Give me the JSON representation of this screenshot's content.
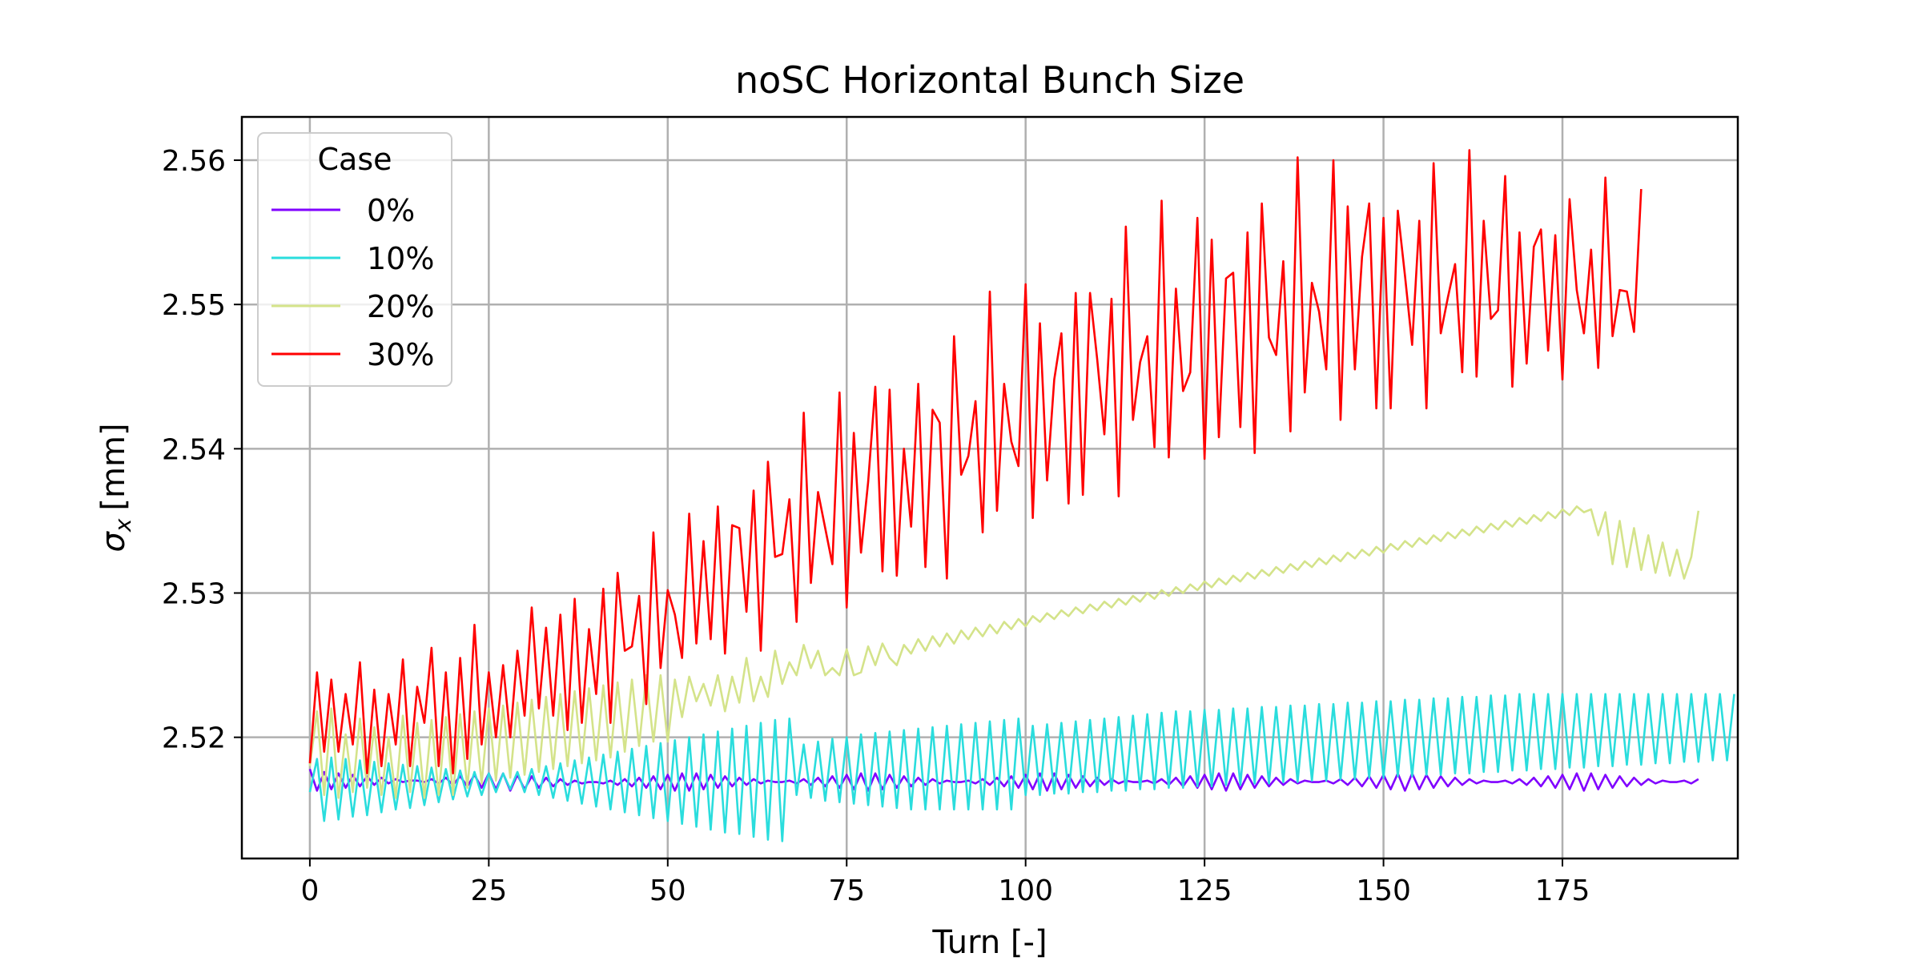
{
  "chart_data": {
    "type": "line",
    "title": "noSC Horizontal Bunch Size",
    "xlabel": "Turn [-]",
    "ylabel_symbol": "σ",
    "ylabel_subscript": "x",
    "ylabel_unit": "[mm]",
    "xlim": [
      -9.5,
      199.5
    ],
    "ylim": [
      2.5116,
      2.563
    ],
    "x_ticks": [
      0,
      25,
      50,
      75,
      100,
      125,
      150,
      175
    ],
    "y_ticks": [
      2.52,
      2.53,
      2.54,
      2.55,
      2.56
    ],
    "y_tick_labels": [
      "2.52",
      "2.53",
      "2.54",
      "2.55",
      "2.56"
    ],
    "grid": true,
    "legend": {
      "title": "Case",
      "placement": "top-left"
    },
    "x": {
      "start": 0,
      "end": 190,
      "step": 1
    },
    "series": [
      {
        "name": "0%",
        "color": "#8000ff",
        "values": [
          2.5178,
          2.5163,
          2.5176,
          2.5164,
          2.5175,
          2.5165,
          2.5174,
          2.5166,
          2.5173,
          2.5167,
          2.5172,
          2.5168,
          2.5171,
          2.5169,
          2.517,
          2.517,
          2.5169,
          2.5171,
          2.5168,
          2.5172,
          2.5167,
          2.5173,
          2.5166,
          2.5174,
          2.5165,
          2.5175,
          2.5164,
          2.5175,
          2.5163,
          2.5174,
          2.5164,
          2.5173,
          2.5165,
          2.5172,
          2.5166,
          2.5171,
          2.5167,
          2.517,
          2.5168,
          2.5169,
          2.5169,
          2.5168,
          2.517,
          2.5167,
          2.5171,
          2.5166,
          2.5172,
          2.5165,
          2.5173,
          2.5164,
          2.5174,
          2.5163,
          2.5175,
          2.5163,
          2.5175,
          2.5164,
          2.5174,
          2.5165,
          2.5173,
          2.5166,
          2.5172,
          2.5167,
          2.5171,
          2.5168,
          2.517,
          2.5169,
          2.5169,
          2.517,
          2.5168,
          2.5171,
          2.5167,
          2.5172,
          2.5166,
          2.5173,
          2.5165,
          2.5174,
          2.5164,
          2.5175,
          2.5163,
          2.5175,
          2.5164,
          2.5174,
          2.5165,
          2.5173,
          2.5166,
          2.5172,
          2.5167,
          2.5171,
          2.5168,
          2.517,
          2.5169,
          2.5169,
          2.517,
          2.5168,
          2.5171,
          2.5167,
          2.5172,
          2.5166,
          2.5173,
          2.5165,
          2.5174,
          2.5164,
          2.5175,
          2.5163,
          2.5175,
          2.5164,
          2.5174,
          2.5165,
          2.5173,
          2.5166,
          2.5172,
          2.5167,
          2.5171,
          2.5168,
          2.517,
          2.5169,
          2.5169,
          2.517,
          2.5168,
          2.5171,
          2.5167,
          2.5172,
          2.5166,
          2.5173,
          2.5165,
          2.5174,
          2.5164,
          2.5175,
          2.5163,
          2.5175,
          2.5164,
          2.5174,
          2.5165,
          2.5173,
          2.5166,
          2.5172,
          2.5167,
          2.5171,
          2.5168,
          2.517,
          2.5169,
          2.5169,
          2.517,
          2.5168,
          2.5171,
          2.5167,
          2.5172,
          2.5166,
          2.5173,
          2.5165,
          2.5174,
          2.5164,
          2.5175,
          2.5163,
          2.5175,
          2.5164,
          2.5174,
          2.5165,
          2.5173,
          2.5166,
          2.5172,
          2.5167,
          2.5171,
          2.5168,
          2.517,
          2.5169,
          2.5169,
          2.517,
          2.5168,
          2.5171,
          2.5167,
          2.5172,
          2.5166,
          2.5173,
          2.5165,
          2.5174,
          2.5164,
          2.5175,
          2.5163,
          2.5175,
          2.5164,
          2.5174,
          2.5165,
          2.5173,
          2.5166,
          2.5172,
          2.5167,
          2.5171,
          2.5168,
          2.517,
          2.5169,
          2.5169,
          2.517,
          2.5168,
          2.5171
        ]
      },
      {
        "name": "10%",
        "color": "#2adddd",
        "values": [
          2.5162,
          2.5185,
          2.5142,
          2.5186,
          2.5143,
          2.5185,
          2.5145,
          2.5184,
          2.5146,
          2.5183,
          2.5148,
          2.5182,
          2.515,
          2.5181,
          2.5151,
          2.518,
          2.5153,
          2.5179,
          2.5155,
          2.5178,
          2.5157,
          2.5177,
          2.5159,
          2.5176,
          2.516,
          2.5175,
          2.5162,
          2.5175,
          2.5164,
          2.5176,
          2.5162,
          2.5178,
          2.516,
          2.518,
          2.5158,
          2.5182,
          2.5156,
          2.5184,
          2.5154,
          2.5186,
          2.5152,
          2.5188,
          2.515,
          2.519,
          2.5148,
          2.5192,
          2.5146,
          2.5194,
          2.5144,
          2.5196,
          2.5142,
          2.5198,
          2.514,
          2.52,
          2.5138,
          2.5202,
          2.5136,
          2.5204,
          2.5134,
          2.5206,
          2.5133,
          2.5208,
          2.5131,
          2.521,
          2.5129,
          2.5212,
          2.5128,
          2.5213,
          2.516,
          2.5195,
          2.5158,
          2.5197,
          2.5156,
          2.5199,
          2.5155,
          2.52,
          2.5154,
          2.5202,
          2.5153,
          2.5203,
          2.5152,
          2.5204,
          2.5151,
          2.5205,
          2.515,
          2.5206,
          2.515,
          2.5207,
          2.515,
          2.5208,
          2.515,
          2.5209,
          2.515,
          2.521,
          2.515,
          2.5211,
          2.515,
          2.5212,
          2.515,
          2.5213,
          2.516,
          2.5208,
          2.516,
          2.5209,
          2.5161,
          2.521,
          2.5161,
          2.5211,
          2.5162,
          2.5212,
          2.5162,
          2.5213,
          2.5163,
          2.5214,
          2.5163,
          2.5215,
          2.5164,
          2.5216,
          2.5164,
          2.5217,
          2.5165,
          2.5218,
          2.5165,
          2.5218,
          2.5166,
          2.5219,
          2.5166,
          2.5219,
          2.5167,
          2.522,
          2.5167,
          2.522,
          2.5168,
          2.5221,
          2.5168,
          2.5221,
          2.5169,
          2.5222,
          2.5169,
          2.5222,
          2.517,
          2.5223,
          2.517,
          2.5223,
          2.5171,
          2.5224,
          2.5171,
          2.5224,
          2.5172,
          2.5225,
          2.5172,
          2.5225,
          2.5173,
          2.5226,
          2.5173,
          2.5226,
          2.5174,
          2.5227,
          2.5174,
          2.5227,
          2.5175,
          2.5228,
          2.5175,
          2.5228,
          2.5176,
          2.5229,
          2.5176,
          2.5229,
          2.5177,
          2.523,
          2.5177,
          2.523,
          2.5178,
          2.523,
          2.5178,
          2.523,
          2.5179,
          2.523,
          2.5179,
          2.523,
          2.518,
          2.523,
          2.518,
          2.523,
          2.5181,
          2.523,
          2.5181,
          2.523,
          2.5182,
          2.523,
          2.5182,
          2.523,
          2.5183,
          2.523,
          2.5183,
          2.523,
          2.5184,
          2.523,
          2.5184,
          2.523
        ]
      },
      {
        "name": "20%",
        "color": "#d4e38a",
        "values": [
          2.518,
          2.5218,
          2.516,
          2.522,
          2.5158,
          2.5202,
          2.5162,
          2.5213,
          2.5165,
          2.5207,
          2.516,
          2.52,
          2.5158,
          2.5215,
          2.5162,
          2.521,
          2.5158,
          2.5212,
          2.516,
          2.5214,
          2.516,
          2.5216,
          2.5165,
          2.5218,
          2.5168,
          2.522,
          2.517,
          2.5222,
          2.5172,
          2.5224,
          2.5174,
          2.5226,
          2.5176,
          2.5228,
          2.5178,
          2.523,
          2.518,
          2.5232,
          2.5182,
          2.5234,
          2.5184,
          2.5236,
          2.5186,
          2.5238,
          2.519,
          2.524,
          2.5194,
          2.5243,
          2.5197,
          2.5243,
          2.5197,
          2.524,
          2.5214,
          2.5242,
          2.5225,
          2.5237,
          2.5222,
          2.5243,
          2.5218,
          2.5242,
          2.5224,
          2.5255,
          2.5225,
          2.5242,
          2.5228,
          2.526,
          2.5237,
          2.5252,
          2.5243,
          2.5264,
          2.5248,
          2.526,
          2.5243,
          2.5248,
          2.5243,
          2.5261,
          2.5243,
          2.5245,
          2.5263,
          2.525,
          2.5265,
          2.5255,
          2.525,
          2.5264,
          2.5258,
          2.5268,
          2.526,
          2.527,
          2.5263,
          2.5272,
          2.5265,
          2.5274,
          2.5268,
          2.5276,
          2.527,
          2.5278,
          2.5272,
          2.528,
          2.5275,
          2.5282,
          2.5277,
          2.5284,
          2.528,
          2.5286,
          2.5282,
          2.5288,
          2.5284,
          2.529,
          2.5286,
          2.5292,
          2.5288,
          2.5294,
          2.529,
          2.5296,
          2.5292,
          2.5298,
          2.5294,
          2.53,
          2.5296,
          2.5302,
          2.5298,
          2.5304,
          2.53,
          2.5306,
          2.5302,
          2.5308,
          2.5304,
          2.531,
          2.5306,
          2.5312,
          2.5308,
          2.5314,
          2.531,
          2.5316,
          2.5312,
          2.5318,
          2.5314,
          2.532,
          2.5316,
          2.5322,
          2.5318,
          2.5324,
          2.532,
          2.5326,
          2.5322,
          2.5328,
          2.5324,
          2.533,
          2.5326,
          2.5332,
          2.5328,
          2.5334,
          2.533,
          2.5336,
          2.5332,
          2.5338,
          2.5334,
          2.534,
          2.5336,
          2.5342,
          2.5338,
          2.5344,
          2.534,
          2.5346,
          2.5342,
          2.5348,
          2.5344,
          2.535,
          2.5346,
          2.5352,
          2.5348,
          2.5354,
          2.535,
          2.5356,
          2.5352,
          2.5358,
          2.5354,
          2.536,
          2.5356,
          2.5358,
          2.534,
          2.5356,
          2.532,
          2.535,
          2.5318,
          2.5345,
          2.5316,
          2.534,
          2.5314,
          2.5335,
          2.5312,
          2.533,
          2.531,
          2.5325,
          2.5357
        ]
      },
      {
        "name": "30%",
        "color": "#ff0000",
        "values": [
          2.5182,
          2.5245,
          2.519,
          2.524,
          2.519,
          2.523,
          2.5195,
          2.5252,
          2.5175,
          2.5233,
          2.518,
          2.523,
          2.5195,
          2.5254,
          2.518,
          2.5235,
          2.521,
          2.5262,
          2.518,
          2.5245,
          2.5175,
          2.5255,
          2.5185,
          2.5278,
          2.5195,
          2.5245,
          2.52,
          2.525,
          2.52,
          2.526,
          2.5215,
          2.529,
          2.522,
          2.5276,
          2.5215,
          2.5285,
          2.5205,
          2.5296,
          2.521,
          2.5275,
          2.523,
          2.5303,
          2.521,
          2.5314,
          2.526,
          2.5263,
          2.5298,
          2.5223,
          2.5342,
          2.5248,
          2.5302,
          2.5285,
          2.5255,
          2.5355,
          2.5265,
          2.5336,
          2.5268,
          2.536,
          2.5258,
          2.5347,
          2.5345,
          2.5287,
          2.5371,
          2.526,
          2.5391,
          2.5325,
          2.5327,
          2.5365,
          2.528,
          2.5425,
          2.5307,
          2.537,
          2.5345,
          2.532,
          2.5439,
          2.529,
          2.5411,
          2.5328,
          2.5377,
          2.5443,
          2.5315,
          2.5441,
          2.5312,
          2.54,
          2.5346,
          2.5445,
          2.5318,
          2.5427,
          2.5418,
          2.531,
          2.5478,
          2.5382,
          2.5395,
          2.5433,
          2.5342,
          2.5509,
          2.5357,
          2.5445,
          2.5405,
          2.5388,
          2.5514,
          2.5352,
          2.5487,
          2.5378,
          2.5448,
          2.548,
          2.5362,
          2.5508,
          2.5368,
          2.5508,
          2.5462,
          2.541,
          2.5504,
          2.5367,
          2.5554,
          2.542,
          2.546,
          2.5478,
          2.5401,
          2.5572,
          2.5394,
          2.5511,
          2.544,
          2.5453,
          2.556,
          2.5393,
          2.5545,
          2.5408,
          2.5518,
          2.5522,
          2.5415,
          2.555,
          2.5397,
          2.557,
          2.5477,
          2.5465,
          2.553,
          2.5412,
          2.5602,
          2.5439,
          2.5515,
          2.5495,
          2.5455,
          2.56,
          2.542,
          2.5568,
          2.5455,
          2.5533,
          2.557,
          2.5428,
          2.556,
          2.5428,
          2.5565,
          2.552,
          2.5472,
          2.5558,
          2.5428,
          2.5598,
          2.548,
          2.5505,
          2.5528,
          2.5453,
          2.5607,
          2.545,
          2.5558,
          2.549,
          2.5496,
          2.5589,
          2.5443,
          2.555,
          2.5459,
          2.554,
          2.5552,
          2.5468,
          2.5548,
          2.5448,
          2.5573,
          2.551,
          2.548,
          2.5538,
          2.5456,
          2.5588,
          2.5478,
          2.551,
          2.5509,
          2.5481,
          2.558
        ]
      }
    ]
  }
}
